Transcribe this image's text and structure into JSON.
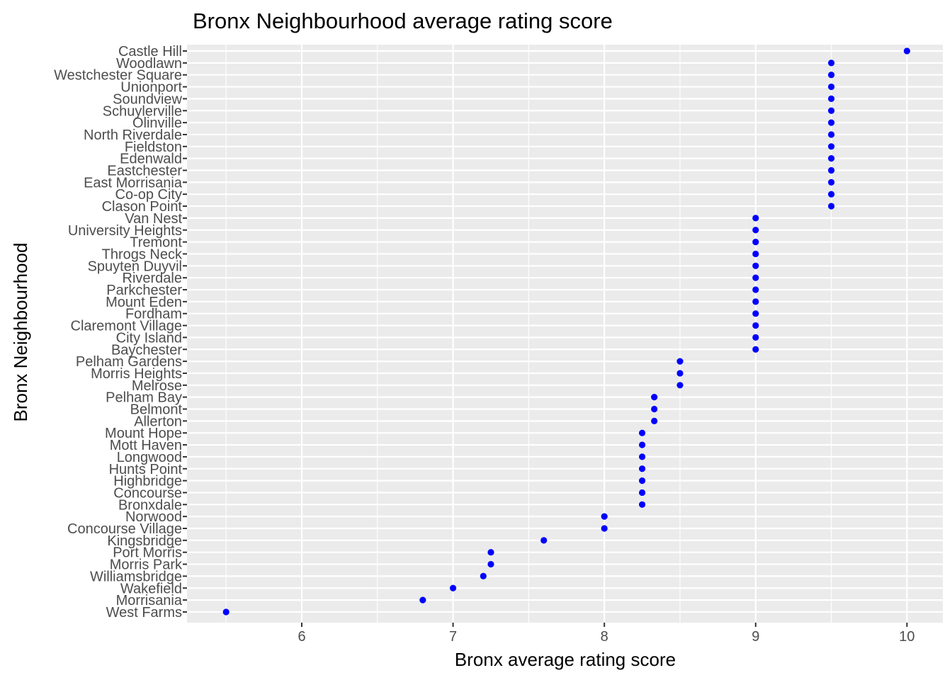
{
  "chart_data": {
    "type": "scatter",
    "title": "Bronx Neighbourhood average rating score",
    "xlabel": "Bronx average rating score",
    "ylabel": "Bronx Neighbourhood",
    "xlim": [
      5.38,
      10.2
    ],
    "x_ticks": [
      6,
      7,
      8,
      9,
      10
    ],
    "x_minor_ticks": [
      5.5,
      6.5,
      7.5,
      8.5,
      9.5
    ],
    "grid": true,
    "legend": "none",
    "point_color": "#0000ff",
    "panel_background": "#ebebeb",
    "points": [
      {
        "name": "Castle Hill",
        "value": 10.0
      },
      {
        "name": "Woodlawn",
        "value": 9.5
      },
      {
        "name": "Westchester Square",
        "value": 9.5
      },
      {
        "name": "Unionport",
        "value": 9.5
      },
      {
        "name": "Soundview",
        "value": 9.5
      },
      {
        "name": "Schuylerville",
        "value": 9.5
      },
      {
        "name": "Olinville",
        "value": 9.5
      },
      {
        "name": "North Riverdale",
        "value": 9.5
      },
      {
        "name": "Fieldston",
        "value": 9.5
      },
      {
        "name": "Edenwald",
        "value": 9.5
      },
      {
        "name": "Eastchester",
        "value": 9.5
      },
      {
        "name": "East Morrisania",
        "value": 9.5
      },
      {
        "name": "Co-op City",
        "value": 9.5
      },
      {
        "name": "Clason Point",
        "value": 9.5
      },
      {
        "name": "Van Nest",
        "value": 9.0
      },
      {
        "name": "University Heights",
        "value": 9.0
      },
      {
        "name": "Tremont",
        "value": 9.0
      },
      {
        "name": "Throgs Neck",
        "value": 9.0
      },
      {
        "name": "Spuyten Duyvil",
        "value": 9.0
      },
      {
        "name": "Riverdale",
        "value": 9.0
      },
      {
        "name": "Parkchester",
        "value": 9.0
      },
      {
        "name": "Mount Eden",
        "value": 9.0
      },
      {
        "name": "Fordham",
        "value": 9.0
      },
      {
        "name": "Claremont Village",
        "value": 9.0
      },
      {
        "name": "City Island",
        "value": 9.0
      },
      {
        "name": "Baychester",
        "value": 9.0
      },
      {
        "name": "Pelham Gardens",
        "value": 8.5
      },
      {
        "name": "Morris Heights",
        "value": 8.5
      },
      {
        "name": "Melrose",
        "value": 8.5
      },
      {
        "name": "Pelham Bay",
        "value": 8.33
      },
      {
        "name": "Belmont",
        "value": 8.33
      },
      {
        "name": "Allerton",
        "value": 8.33
      },
      {
        "name": "Mount Hope",
        "value": 8.25
      },
      {
        "name": "Mott Haven",
        "value": 8.25
      },
      {
        "name": "Longwood",
        "value": 8.25
      },
      {
        "name": "Hunts Point",
        "value": 8.25
      },
      {
        "name": "Highbridge",
        "value": 8.25
      },
      {
        "name": "Concourse",
        "value": 8.25
      },
      {
        "name": "Bronxdale",
        "value": 8.25
      },
      {
        "name": "Norwood",
        "value": 8.0
      },
      {
        "name": "Concourse Village",
        "value": 8.0
      },
      {
        "name": "Kingsbridge",
        "value": 7.6
      },
      {
        "name": "Port Morris",
        "value": 7.25
      },
      {
        "name": "Morris Park",
        "value": 7.25
      },
      {
        "name": "Williamsbridge",
        "value": 7.2
      },
      {
        "name": "Wakefield",
        "value": 7.0
      },
      {
        "name": "Morrisania",
        "value": 6.8
      },
      {
        "name": "West Farms",
        "value": 5.5
      }
    ]
  }
}
